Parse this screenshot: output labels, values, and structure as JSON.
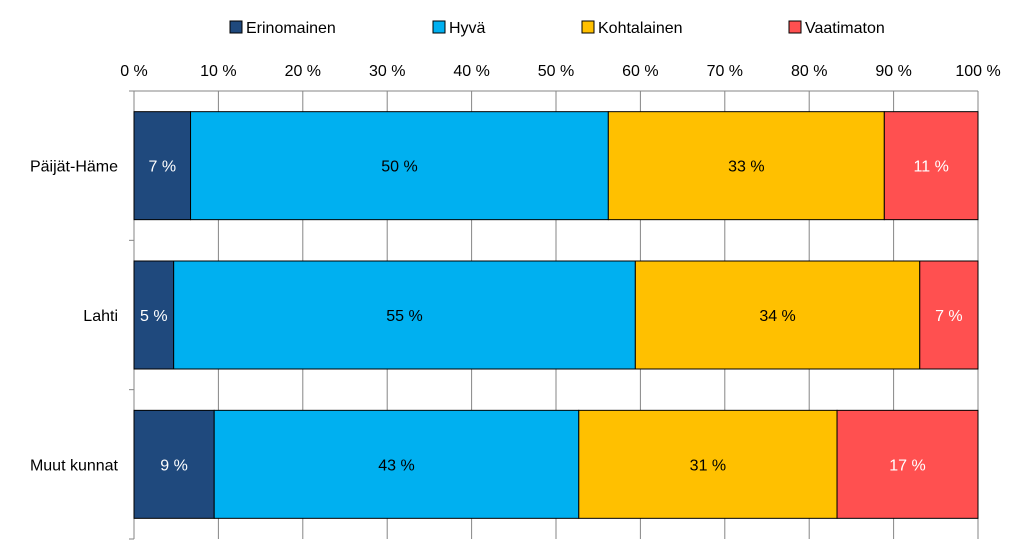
{
  "chart_data": {
    "type": "bar",
    "orientation": "horizontal",
    "stacked": true,
    "categories": [
      "Päijät-Häme",
      "Lahti",
      "Muut kunnat"
    ],
    "series": [
      {
        "name": "Erinomainen",
        "color": "#1F497D",
        "label_color": "#FFFFFF",
        "values": [
          6.7,
          4.7,
          9.5
        ],
        "labels": [
          "7 %",
          "5 %",
          "9 %"
        ]
      },
      {
        "name": "Hyvä",
        "color": "#00B0F0",
        "label_color": "#000000",
        "values": [
          49.5,
          54.7,
          43.2
        ],
        "labels": [
          "50 %",
          "55 %",
          "43 %"
        ]
      },
      {
        "name": "Kohtalainen",
        "color": "#FFC000",
        "label_color": "#000000",
        "values": [
          32.7,
          33.7,
          30.6
        ],
        "labels": [
          "33 %",
          "34 %",
          "31 %"
        ]
      },
      {
        "name": "Vaatimaton",
        "color": "#FF5050",
        "label_color": "#FFFFFF",
        "values": [
          11.1,
          6.9,
          16.7
        ],
        "labels": [
          "11 %",
          "7 %",
          "17 %"
        ]
      }
    ],
    "xlim": [
      0,
      100
    ],
    "xticks": [
      0,
      10,
      20,
      30,
      40,
      50,
      60,
      70,
      80,
      90,
      100
    ],
    "xtick_labels": [
      "0 %",
      "10 %",
      "20 %",
      "30 %",
      "40 %",
      "50 %",
      "60 %",
      "70 %",
      "80 %",
      "90 %",
      "100 %"
    ],
    "x_axis_position": "top",
    "grid": true,
    "legend_position": "top",
    "title": "",
    "xlabel": "",
    "ylabel": ""
  }
}
